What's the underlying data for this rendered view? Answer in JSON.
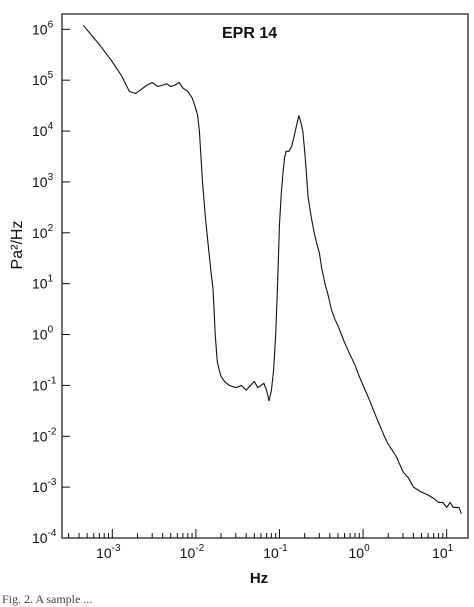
{
  "chart_data": {
    "type": "line",
    "title": "EPR 14",
    "xlabel": "Hz",
    "ylabel": "Pa²/Hz",
    "xscale": "log",
    "yscale": "log",
    "xlim": [
      0.00025,
      18
    ],
    "ylim": [
      0.0001,
      2000000
    ],
    "grid": false,
    "xticks": [
      {
        "value": 0.001,
        "label": "10",
        "exp": "-3"
      },
      {
        "value": 0.01,
        "label": "10",
        "exp": "-2"
      },
      {
        "value": 0.1,
        "label": "10",
        "exp": "-1"
      },
      {
        "value": 1,
        "label": "10",
        "exp": "0"
      },
      {
        "value": 10,
        "label": "10",
        "exp": "1"
      }
    ],
    "yticks": [
      {
        "value": 1000000,
        "label": "10",
        "exp": "6"
      },
      {
        "value": 100000,
        "label": "10",
        "exp": "5"
      },
      {
        "value": 10000,
        "label": "10",
        "exp": "4"
      },
      {
        "value": 1000,
        "label": "10",
        "exp": "3"
      },
      {
        "value": 100,
        "label": "10",
        "exp": "2"
      },
      {
        "value": 10,
        "label": "10",
        "exp": "1"
      },
      {
        "value": 1,
        "label": "10",
        "exp": "0"
      },
      {
        "value": 0.1,
        "label": "10",
        "exp": "-1"
      },
      {
        "value": 0.01,
        "label": "10",
        "exp": "-2"
      },
      {
        "value": 0.001,
        "label": "10",
        "exp": "-3"
      },
      {
        "value": 0.0001,
        "label": "10",
        "exp": "-4"
      }
    ],
    "series": [
      {
        "x": [
          0.00045,
          0.0007,
          0.001,
          0.0013,
          0.0016,
          0.0019,
          0.0022,
          0.0026,
          0.003,
          0.0035,
          0.004,
          0.0045,
          0.005,
          0.0056,
          0.0063,
          0.007,
          0.008,
          0.009,
          0.0098,
          0.0105,
          0.011,
          0.0115,
          0.012,
          0.013,
          0.014,
          0.015,
          0.016,
          0.0165,
          0.017,
          0.018,
          0.019,
          0.02,
          0.022,
          0.025,
          0.03,
          0.035,
          0.04,
          0.045,
          0.05,
          0.055,
          0.06,
          0.065,
          0.07,
          0.075,
          0.08,
          0.085,
          0.09,
          0.095,
          0.1,
          0.105,
          0.11,
          0.115,
          0.12,
          0.13,
          0.14,
          0.15,
          0.16,
          0.17,
          0.18,
          0.19,
          0.2,
          0.21,
          0.22,
          0.24,
          0.26,
          0.28,
          0.3,
          0.32,
          0.35,
          0.38,
          0.42,
          0.46,
          0.5,
          0.55,
          0.6,
          0.7,
          0.8,
          0.9,
          1.0,
          1.2,
          1.5,
          1.8,
          2.0,
          2.5,
          3.0,
          3.5,
          4.0,
          5.0,
          6.0,
          7.0,
          8.0,
          9.0,
          10.0,
          11.0,
          12.0,
          13.0,
          14.0,
          15.0
        ],
        "y": [
          1200000,
          500000,
          230000,
          120000,
          60000,
          55000,
          65000,
          80000,
          90000,
          75000,
          80000,
          85000,
          75000,
          80000,
          90000,
          70000,
          60000,
          45000,
          30000,
          20000,
          10000,
          3000,
          1000,
          200,
          60,
          20,
          8,
          3,
          1,
          0.3,
          0.2,
          0.15,
          0.12,
          0.1,
          0.09,
          0.1,
          0.08,
          0.1,
          0.12,
          0.09,
          0.1,
          0.11,
          0.08,
          0.05,
          0.08,
          0.2,
          1,
          10,
          150,
          600,
          1500,
          3000,
          4000,
          4000,
          5000,
          8000,
          13000,
          20000,
          15000,
          10000,
          4000,
          1500,
          500,
          200,
          100,
          60,
          40,
          20,
          10,
          6,
          3,
          2,
          1.5,
          1,
          0.7,
          0.4,
          0.25,
          0.15,
          0.1,
          0.05,
          0.02,
          0.01,
          0.007,
          0.004,
          0.002,
          0.0015,
          0.001,
          0.0008,
          0.0007,
          0.0006,
          0.0005,
          0.0005,
          0.0004,
          0.0005,
          0.0004,
          0.0004,
          0.0004,
          0.0003
        ]
      }
    ]
  },
  "caption": "Fig. 2.  A sample ..."
}
